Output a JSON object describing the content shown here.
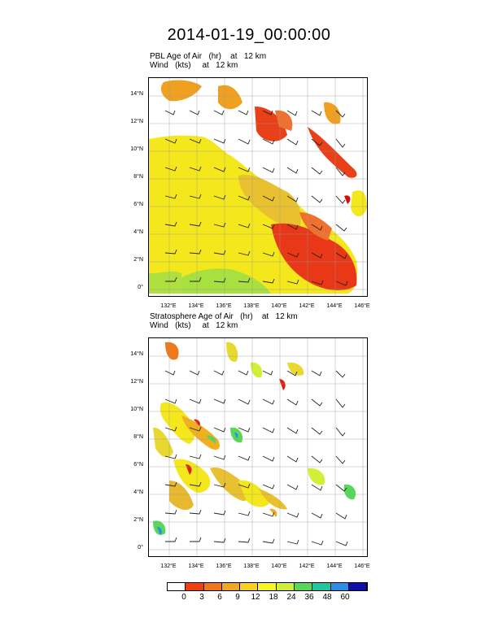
{
  "title": "2014-01-19_00:00:00",
  "panels": [
    {
      "field_label": "PBL Age of Air   (hr)",
      "level_label": "at   12 km",
      "wind_label": "Wind   (kts)",
      "wind_level": "at   12 km"
    },
    {
      "field_label": "Stratosphere Age of Air   (hr)",
      "level_label": "at   12 km",
      "wind_label": "Wind   (kts)",
      "wind_level": "at   12 km"
    }
  ],
  "axes": {
    "lat_ticks": [
      "14°N",
      "12°N",
      "10°N",
      "8°N",
      "6°N",
      "4°N",
      "2°N",
      "0°"
    ],
    "lon_ticks": [
      "132°E",
      "134°E",
      "136°E",
      "138°E",
      "140°E",
      "142°E",
      "144°E",
      "146°E"
    ]
  },
  "colorbar": {
    "colors": [
      "#ffffff",
      "#e00000",
      "#f04010",
      "#f07818",
      "#f0a820",
      "#f8d020",
      "#f8f820",
      "#d0f038",
      "#58d858",
      "#20c8a0",
      "#2890e8",
      "#1010a8",
      "#000080"
    ],
    "labels": [
      "0",
      "3",
      "6",
      "9",
      "12",
      "18",
      "24",
      "36",
      "48",
      "60"
    ]
  }
}
